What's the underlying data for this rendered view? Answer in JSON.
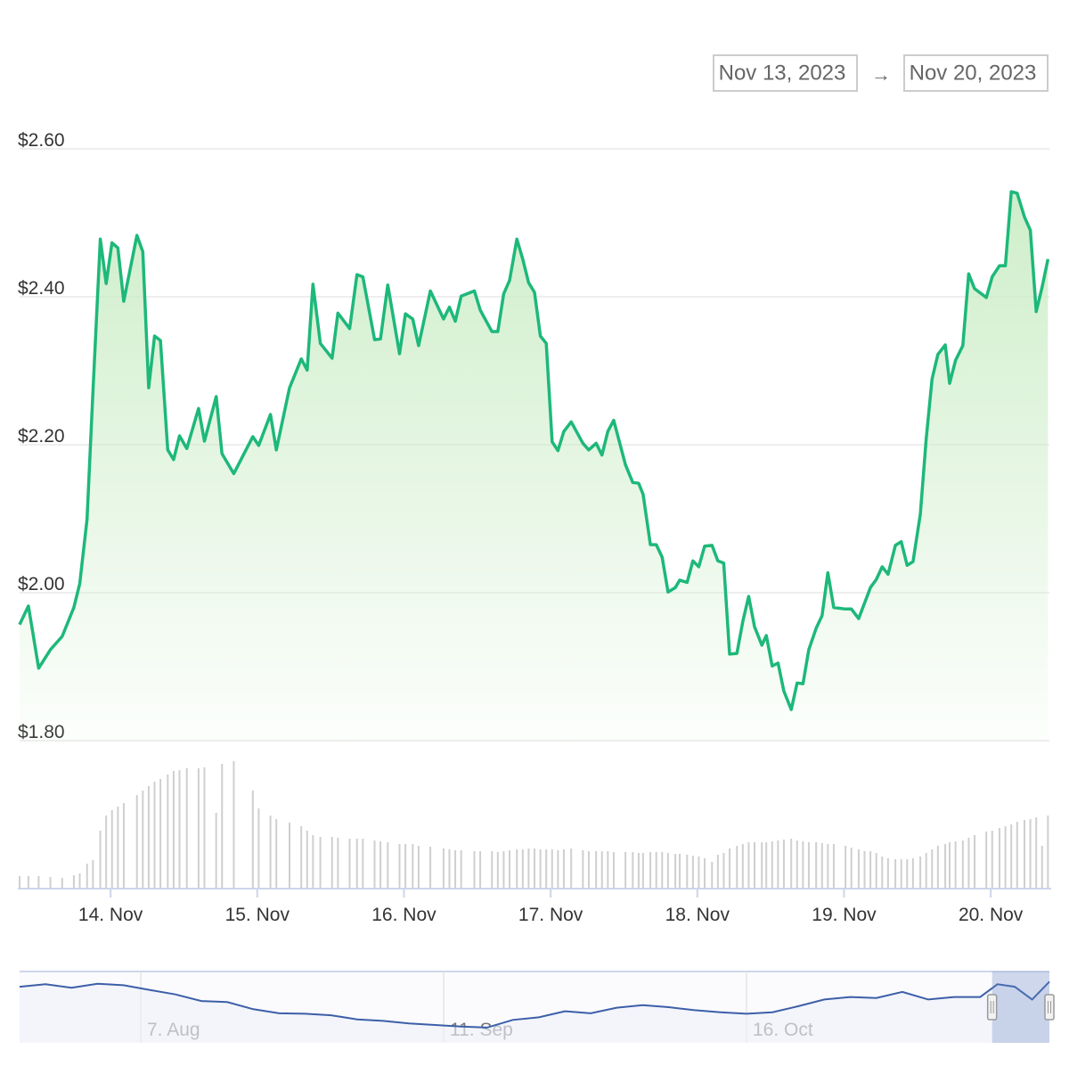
{
  "chart_data": {
    "type": "line",
    "range": {
      "from": "Nov 13, 2023",
      "separator": "→",
      "to": "Nov 20, 2023"
    },
    "xlim": [
      13.38,
      20.4
    ],
    "xticks": [
      {
        "value": 14,
        "label": "14. Nov"
      },
      {
        "value": 15,
        "label": "15. Nov"
      },
      {
        "value": 16,
        "label": "16. Nov"
      },
      {
        "value": 17,
        "label": "17. Nov"
      },
      {
        "value": 18,
        "label": "18. Nov"
      },
      {
        "value": 19,
        "label": "19. Nov"
      },
      {
        "value": 20,
        "label": "20. Nov"
      }
    ],
    "ylim": [
      1.8,
      2.6
    ],
    "yticks": [
      {
        "value": 1.8,
        "label": "$1.80"
      },
      {
        "value": 2.0,
        "label": "$2.00"
      },
      {
        "value": 2.2,
        "label": "$2.20"
      },
      {
        "value": 2.4,
        "label": "$2.40"
      },
      {
        "value": 2.6,
        "label": "$2.60"
      }
    ],
    "grid": true,
    "color": "#1db87a",
    "x": [
      13.38,
      13.44,
      13.51,
      13.59,
      13.67,
      13.75,
      13.79,
      13.84,
      13.88,
      13.93,
      13.97,
      14.01,
      14.05,
      14.09,
      14.18,
      14.22,
      14.26,
      14.3,
      14.34,
      14.39,
      14.43,
      14.47,
      14.52,
      14.6,
      14.64,
      14.72,
      14.76,
      14.84,
      14.97,
      15.01,
      15.09,
      15.13,
      15.22,
      15.3,
      15.34,
      15.38,
      15.43,
      15.51,
      15.55,
      15.63,
      15.68,
      15.72,
      15.8,
      15.84,
      15.89,
      15.97,
      16.01,
      16.06,
      16.1,
      16.18,
      16.27,
      16.31,
      16.35,
      16.39,
      16.48,
      16.52,
      16.6,
      16.64,
      16.68,
      16.72,
      16.77,
      16.81,
      16.85,
      16.89,
      16.93,
      16.97,
      17.01,
      17.05,
      17.09,
      17.14,
      17.22,
      17.26,
      17.31,
      17.35,
      17.39,
      17.43,
      17.51,
      17.56,
      17.6,
      17.63,
      17.68,
      17.72,
      17.76,
      17.8,
      17.85,
      17.88,
      17.93,
      17.97,
      18.01,
      18.05,
      18.1,
      18.14,
      18.18,
      18.22,
      18.27,
      18.31,
      18.35,
      18.39,
      18.44,
      18.47,
      18.51,
      18.55,
      18.59,
      18.64,
      18.68,
      18.72,
      18.76,
      18.81,
      18.85,
      18.89,
      18.93,
      19.01,
      19.05,
      19.1,
      19.14,
      19.18,
      19.22,
      19.26,
      19.3,
      19.35,
      19.39,
      19.43,
      19.47,
      19.52,
      19.56,
      19.6,
      19.64,
      19.69,
      19.72,
      19.76,
      19.81,
      19.85,
      19.89,
      19.97,
      20.01,
      20.06,
      20.1,
      20.14,
      20.18,
      20.23,
      20.27,
      20.31,
      20.35,
      20.39
    ],
    "values": [
      1.957,
      1.982,
      1.898,
      1.923,
      1.941,
      1.98,
      2.012,
      2.099,
      2.271,
      2.478,
      2.418,
      2.473,
      2.466,
      2.394,
      2.483,
      2.461,
      2.277,
      2.347,
      2.341,
      2.193,
      2.18,
      2.212,
      2.195,
      2.249,
      2.205,
      2.265,
      2.188,
      2.161,
      2.211,
      2.199,
      2.241,
      2.193,
      2.277,
      2.316,
      2.301,
      2.417,
      2.337,
      2.317,
      2.378,
      2.357,
      2.43,
      2.427,
      2.342,
      2.343,
      2.416,
      2.323,
      2.377,
      2.37,
      2.334,
      2.408,
      2.37,
      2.386,
      2.367,
      2.401,
      2.408,
      2.382,
      2.353,
      2.353,
      2.404,
      2.422,
      2.478,
      2.451,
      2.419,
      2.406,
      2.347,
      2.337,
      2.204,
      2.192,
      2.218,
      2.231,
      2.202,
      2.193,
      2.202,
      2.186,
      2.218,
      2.233,
      2.173,
      2.149,
      2.148,
      2.133,
      2.065,
      2.065,
      2.048,
      2.001,
      2.007,
      2.017,
      2.014,
      2.043,
      2.035,
      2.063,
      2.064,
      2.043,
      2.04,
      1.917,
      1.918,
      1.961,
      1.995,
      1.954,
      1.929,
      1.942,
      1.901,
      1.905,
      1.867,
      1.842,
      1.878,
      1.877,
      1.923,
      1.952,
      1.969,
      2.027,
      1.98,
      1.978,
      1.978,
      1.965,
      1.986,
      2.007,
      2.018,
      2.035,
      2.025,
      2.064,
      2.069,
      2.037,
      2.042,
      2.106,
      2.208,
      2.289,
      2.322,
      2.335,
      2.283,
      2.314,
      2.334,
      2.431,
      2.411,
      2.399,
      2.427,
      2.442,
      2.442,
      2.542,
      2.54,
      2.508,
      2.49,
      2.38,
      2.413,
      2.451
    ],
    "volume": {
      "color": "#cfcfcf",
      "ylim": [
        0,
        150
      ],
      "values": [
        14,
        14,
        14,
        13,
        12,
        15,
        17,
        28,
        32,
        65,
        82,
        88,
        92,
        96,
        105,
        110,
        115,
        120,
        123,
        128,
        132,
        133,
        135,
        135,
        136,
        85,
        140,
        143,
        110,
        90,
        82,
        78,
        74,
        70,
        65,
        60,
        58,
        58,
        57,
        56,
        56,
        56,
        54,
        53,
        52,
        50,
        50,
        50,
        48,
        47,
        45,
        44,
        43,
        43,
        42,
        42,
        42,
        41,
        42,
        43,
        44,
        44,
        45,
        45,
        44,
        44,
        44,
        43,
        44,
        45,
        43,
        42,
        42,
        42,
        42,
        41,
        41,
        41,
        40,
        40,
        41,
        41,
        41,
        40,
        39,
        39,
        38,
        37,
        36,
        34,
        30,
        38,
        40,
        45,
        48,
        50,
        52,
        52,
        52,
        52,
        53,
        54,
        55,
        56,
        54,
        53,
        52,
        52,
        51,
        50,
        50,
        48,
        46,
        44,
        42,
        42,
        40,
        36,
        34,
        33,
        33,
        33,
        34,
        36,
        40,
        44,
        48,
        50,
        52,
        53,
        54,
        57,
        60,
        64,
        65,
        68,
        70,
        72,
        75,
        77,
        78,
        80,
        48,
        82
      ]
    },
    "navigator": {
      "color": "#3d5fa8",
      "ylim": [
        1.2,
        2.6
      ],
      "xlim": [
        "2023-07-24",
        "2023-11-20"
      ],
      "xticks": [
        {
          "value": "2023-08-07",
          "label": "7. Aug"
        },
        {
          "value": "2023-09-11",
          "label": "11. Sep"
        },
        {
          "value": "2023-10-16",
          "label": "16. Oct"
        }
      ],
      "x": [
        "2023-07-24",
        "2023-07-27",
        "2023-07-30",
        "2023-08-02",
        "2023-08-05",
        "2023-08-08",
        "2023-08-11",
        "2023-08-14",
        "2023-08-17",
        "2023-08-20",
        "2023-08-23",
        "2023-08-26",
        "2023-08-29",
        "2023-09-01",
        "2023-09-04",
        "2023-09-07",
        "2023-09-10",
        "2023-09-13",
        "2023-09-16",
        "2023-09-19",
        "2023-09-22",
        "2023-09-25",
        "2023-09-28",
        "2023-10-01",
        "2023-10-04",
        "2023-10-07",
        "2023-10-10",
        "2023-10-13",
        "2023-10-16",
        "2023-10-19",
        "2023-10-22",
        "2023-10-25",
        "2023-10-28",
        "2023-10-31",
        "2023-11-03",
        "2023-11-06",
        "2023-11-09",
        "2023-11-12",
        "2023-11-14",
        "2023-11-16",
        "2023-11-18",
        "2023-11-20"
      ],
      "values": [
        2.3,
        2.35,
        2.28,
        2.36,
        2.33,
        2.24,
        2.15,
        2.02,
        2.0,
        1.86,
        1.78,
        1.77,
        1.74,
        1.66,
        1.63,
        1.58,
        1.55,
        1.52,
        1.5,
        1.65,
        1.7,
        1.82,
        1.78,
        1.89,
        1.94,
        1.9,
        1.84,
        1.8,
        1.77,
        1.8,
        1.92,
        2.05,
        2.1,
        2.08,
        2.2,
        2.05,
        2.1,
        2.1,
        2.35,
        2.3,
        2.05,
        2.4
      ]
    }
  }
}
